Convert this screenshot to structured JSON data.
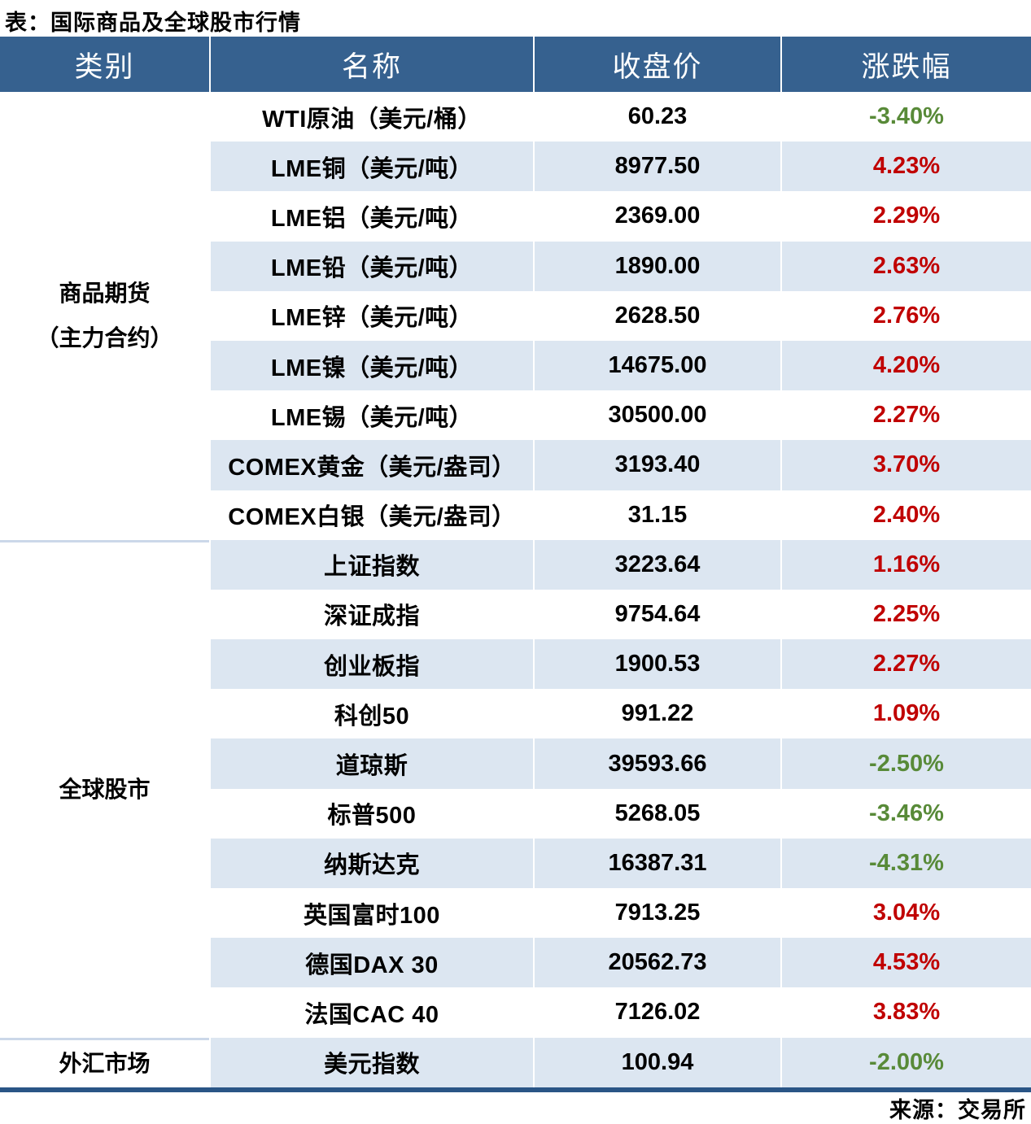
{
  "title": "表：国际商品及全球股市行情",
  "source": "来源：交易所",
  "table": {
    "headers": [
      "类别",
      "名称",
      "收盘价",
      "涨跌幅"
    ],
    "categories": [
      {
        "name": "商品期货（主力合约）",
        "line1": "商品期货",
        "line2": "（主力合约）",
        "row_span": 9
      },
      {
        "name": "全球股市",
        "line1": "全球股市",
        "line2": "",
        "row_span": 10
      },
      {
        "name": "外汇市场",
        "line1": "外汇市场",
        "line2": "",
        "row_span": 1
      }
    ],
    "rows": [
      {
        "name": "WTI原油（美元/桶）",
        "close": "60.23",
        "change": "-3.40%"
      },
      {
        "name": "LME铜（美元/吨）",
        "close": "8977.50",
        "change": "4.23%"
      },
      {
        "name": "LME铝（美元/吨）",
        "close": "2369.00",
        "change": "2.29%"
      },
      {
        "name": "LME铅（美元/吨）",
        "close": "1890.00",
        "change": "2.63%"
      },
      {
        "name": "LME锌（美元/吨）",
        "close": "2628.50",
        "change": "2.76%"
      },
      {
        "name": "LME镍（美元/吨）",
        "close": "14675.00",
        "change": "4.20%"
      },
      {
        "name": "LME锡（美元/吨）",
        "close": "30500.00",
        "change": "2.27%"
      },
      {
        "name": "COMEX黄金（美元/盎司）",
        "close": "3193.40",
        "change": "3.70%"
      },
      {
        "name": "COMEX白银（美元/盎司）",
        "close": "31.15",
        "change": "2.40%"
      },
      {
        "name": "上证指数",
        "close": "3223.64",
        "change": "1.16%"
      },
      {
        "name": "深证成指",
        "close": "9754.64",
        "change": "2.25%"
      },
      {
        "name": "创业板指",
        "close": "1900.53",
        "change": "2.27%"
      },
      {
        "name": "科创50",
        "close": "991.22",
        "change": "1.09%"
      },
      {
        "name": "道琼斯",
        "close": "39593.66",
        "change": "-2.50%"
      },
      {
        "name": "标普500",
        "close": "5268.05",
        "change": "-3.46%"
      },
      {
        "name": "纳斯达克",
        "close": "16387.31",
        "change": "-4.31%"
      },
      {
        "name": "英国富时100",
        "close": "7913.25",
        "change": "3.04%"
      },
      {
        "name": "德国DAX 30",
        "close": "20562.73",
        "change": "4.53%"
      },
      {
        "name": "法国CAC 40",
        "close": "7126.02",
        "change": "3.83%"
      },
      {
        "name": "美元指数",
        "close": "100.94",
        "change": "-2.00%"
      }
    ],
    "colors": {
      "header_bg": "#36618F",
      "alt_row_bg": "#DCE6F1",
      "up_red": "#C00000",
      "down_green": "#588A38",
      "bottom_bar": "#2A5586",
      "section_divider": "#CBD8E9"
    }
  },
  "chart_data": {
    "type": "table",
    "title": "表：国际商品及全球股市行情",
    "columns": [
      "类别",
      "名称",
      "收盘价",
      "涨跌幅"
    ],
    "rows": [
      [
        "商品期货（主力合约）",
        "WTI原油（美元/桶）",
        60.23,
        -3.4
      ],
      [
        "商品期货（主力合约）",
        "LME铜（美元/吨）",
        8977.5,
        4.23
      ],
      [
        "商品期货（主力合约）",
        "LME铝（美元/吨）",
        2369.0,
        2.29
      ],
      [
        "商品期货（主力合约）",
        "LME铅（美元/吨）",
        1890.0,
        2.63
      ],
      [
        "商品期货（主力合约）",
        "LME锌（美元/吨）",
        2628.5,
        2.76
      ],
      [
        "商品期货（主力合约）",
        "LME镍（美元/吨）",
        14675.0,
        4.2
      ],
      [
        "商品期货（主力合约）",
        "LME锡（美元/吨）",
        30500.0,
        2.27
      ],
      [
        "商品期货（主力合约）",
        "COMEX黄金（美元/盎司）",
        3193.4,
        3.7
      ],
      [
        "商品期货（主力合约）",
        "COMEX白银（美元/盎司）",
        31.15,
        2.4
      ],
      [
        "全球股市",
        "上证指数",
        3223.64,
        1.16
      ],
      [
        "全球股市",
        "深证成指",
        9754.64,
        2.25
      ],
      [
        "全球股市",
        "创业板指",
        1900.53,
        2.27
      ],
      [
        "全球股市",
        "科创50",
        991.22,
        1.09
      ],
      [
        "全球股市",
        "道琼斯",
        39593.66,
        -2.5
      ],
      [
        "全球股市",
        "标普500",
        5268.05,
        -3.46
      ],
      [
        "全球股市",
        "纳斯达克",
        16387.31,
        -4.31
      ],
      [
        "全球股市",
        "英国富时100",
        7913.25,
        3.04
      ],
      [
        "全球股市",
        "德国DAX 30",
        20562.73,
        4.53
      ],
      [
        "全球股市",
        "法国CAC 40",
        7126.02,
        3.83
      ],
      [
        "外汇市场",
        "美元指数",
        100.94,
        -2.0
      ]
    ],
    "source": "来源：交易所",
    "notes": "change column: positive = red (#C00000), negative = green (#588A38); zebra striping #DCE6F1"
  }
}
